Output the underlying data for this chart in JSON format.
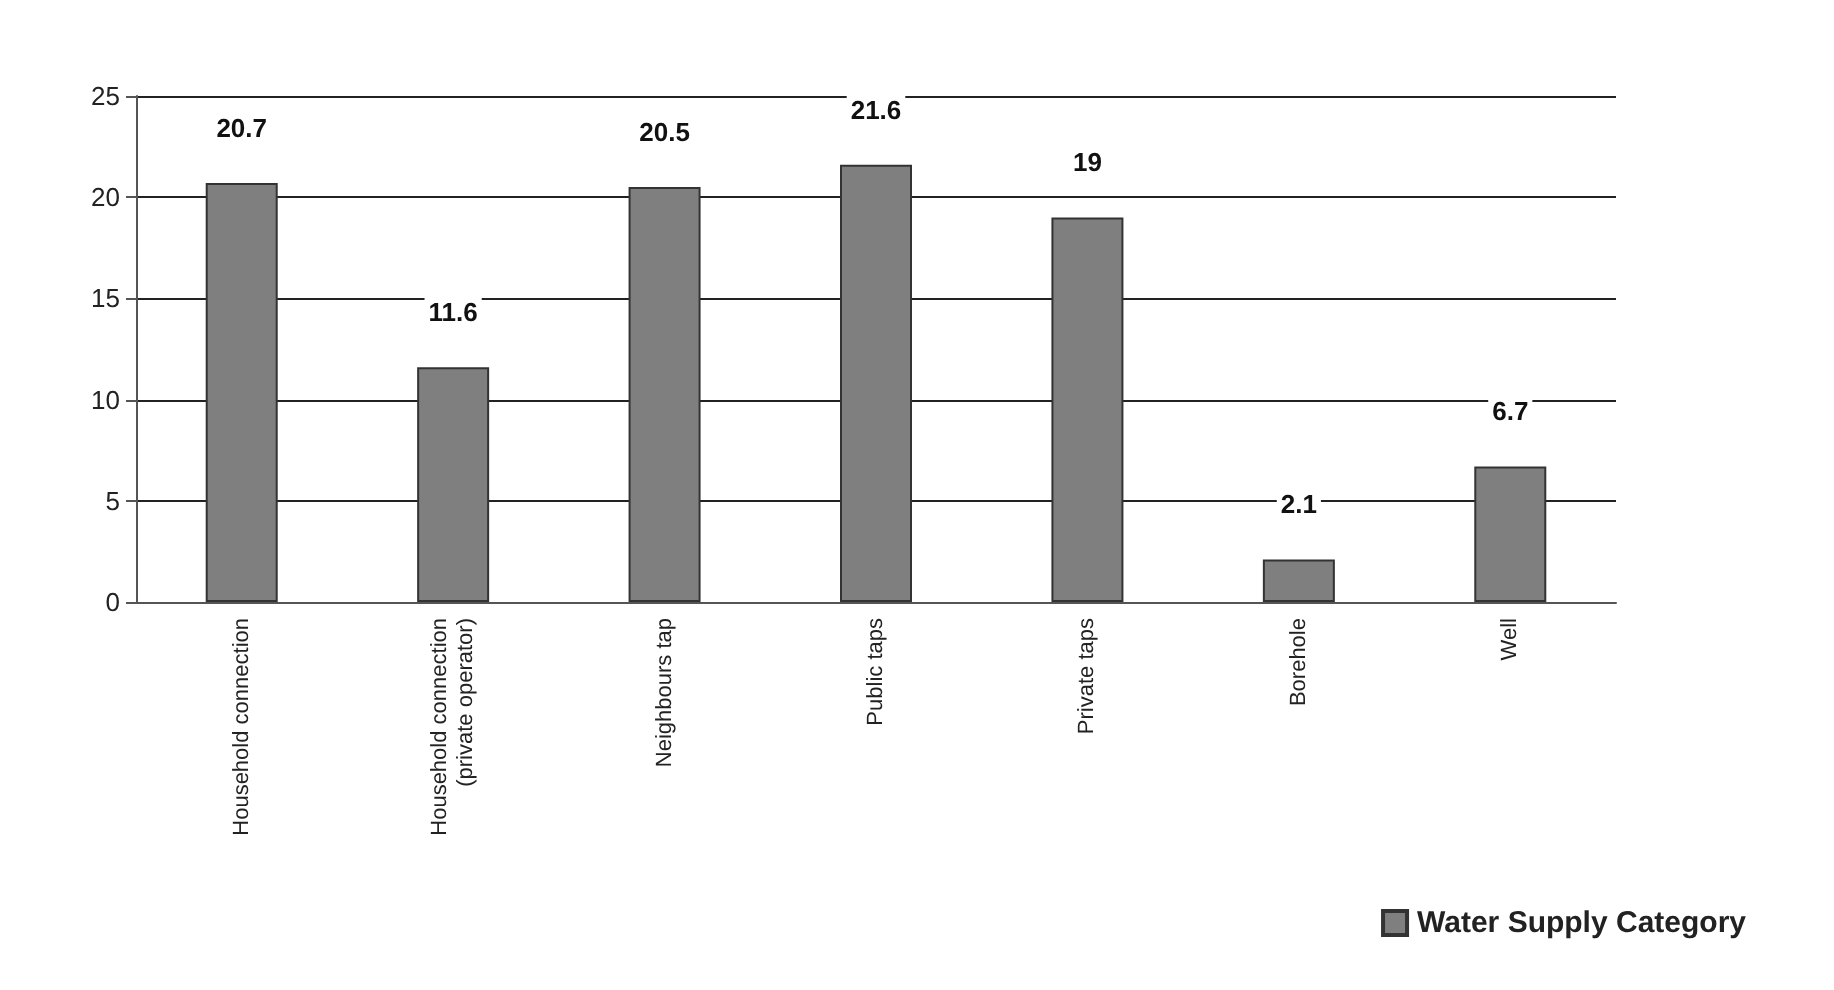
{
  "chart_data": {
    "type": "bar",
    "categories": [
      "Household connection",
      "Household connection (private operator)",
      "Neighbours tap",
      "Public taps",
      "Private taps",
      "Borehole",
      "Well"
    ],
    "series": [
      {
        "name": "Water Supply Category",
        "color": "#7f7f7f",
        "values": [
          20.7,
          11.6,
          20.5,
          21.6,
          19,
          2.1,
          6.7
        ]
      }
    ],
    "ylim": [
      0,
      25
    ],
    "yticks": [
      0,
      5,
      10,
      15,
      20,
      25
    ],
    "grid": "y",
    "legend": "bottom right",
    "data_labels": true
  }
}
